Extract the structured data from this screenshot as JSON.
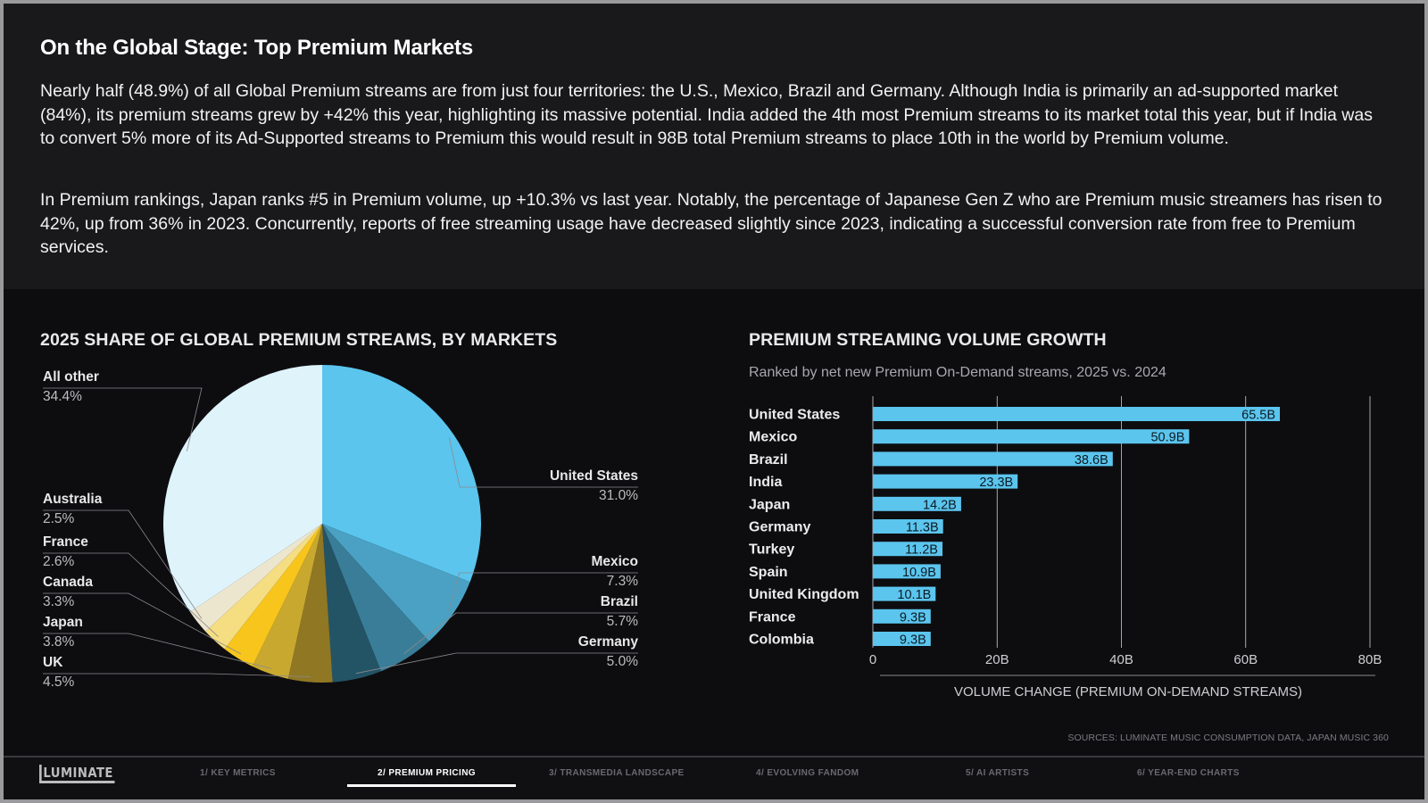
{
  "intro": {
    "title": "On the Global Stage: Top Premium Markets",
    "para1": "Nearly half (48.9%) of all Global Premium streams are from just four territories: the U.S., Mexico, Brazil and Germany. Although India is primarily an ad-supported market (84%), its premium streams grew by +42% this year, highlighting its massive potential. India added the 4th most Premium streams to its market total this year, but if India was to convert 5% more of its Ad-Supported streams to Premium this would result in 98B total Premium streams to place 10th in the world by Premium volume.",
    "para2": "In Premium rankings, Japan ranks #5 in Premium volume, up +10.3% vs last year. Notably, the percentage of Japanese Gen Z who are Premium music streamers has risen to 42%, up from 36% in 2023. Concurrently, reports of free streaming usage have decreased slightly since 2023, indicating a successful conversion rate from free to Premium services."
  },
  "chart_data": [
    {
      "type": "pie",
      "title": "2025 SHARE OF GLOBAL PREMIUM STREAMS, BY MARKETS",
      "slices": [
        {
          "label": "United States",
          "value": 31.0,
          "display": "31.0%",
          "color": "#5bc5ee"
        },
        {
          "label": "Mexico",
          "value": 7.3,
          "display": "7.3%",
          "color": "#4aa1c3"
        },
        {
          "label": "Brazil",
          "value": 5.7,
          "display": "5.7%",
          "color": "#3a7d98"
        },
        {
          "label": "Germany",
          "value": 5.0,
          "display": "5.0%",
          "color": "#235466"
        },
        {
          "label": "UK",
          "value": 4.5,
          "display": "4.5%",
          "color": "#8f7724"
        },
        {
          "label": "Japan",
          "value": 3.8,
          "display": "3.8%",
          "color": "#c9a82f"
        },
        {
          "label": "Canada",
          "value": 3.3,
          "display": "3.3%",
          "color": "#f7c51b"
        },
        {
          "label": "France",
          "value": 2.6,
          "display": "2.6%",
          "color": "#f5dd82"
        },
        {
          "label": "Australia",
          "value": 2.5,
          "display": "2.5%",
          "color": "#ede6cf"
        },
        {
          "label": "All other",
          "value": 34.4,
          "display": "34.4%",
          "color": "#dff3fb"
        }
      ]
    },
    {
      "type": "bar",
      "orientation": "horizontal",
      "title": "PREMIUM STREAMING VOLUME GROWTH",
      "subtitle": "Ranked by net new Premium On-Demand streams, 2025 vs. 2024",
      "categories": [
        "United States",
        "Mexico",
        "Brazil",
        "India",
        "Japan",
        "Germany",
        "Turkey",
        "Spain",
        "United Kingdom",
        "France",
        "Colombia"
      ],
      "values": [
        65.5,
        50.9,
        38.6,
        23.3,
        14.2,
        11.3,
        11.2,
        10.9,
        10.1,
        9.3,
        9.3
      ],
      "value_labels": [
        "65.5B",
        "50.9B",
        "38.6B",
        "23.3B",
        "14.2B",
        "11.3B",
        "11.2B",
        "10.9B",
        "10.1B",
        "9.3B",
        "9.3B"
      ],
      "xlim": [
        0,
        80
      ],
      "xticks": [
        0,
        20,
        40,
        60,
        80
      ],
      "xtick_labels": [
        "0",
        "20B",
        "40B",
        "60B",
        "80B"
      ],
      "xlabel": "VOLUME CHANGE (PREMIUM ON-DEMAND STREAMS)",
      "bar_color": "#5bc5ee",
      "grid": true
    }
  ],
  "sources": "SOURCES: LUMINATE MUSIC CONSUMPTION DATA, JAPAN MUSIC 360",
  "footer": {
    "logo": "LUMINATE",
    "tabs": [
      "1/ KEY METRICS",
      "2/ PREMIUM PRICING",
      "3/ TRANSMEDIA LANDSCAPE",
      "4/ EVOLVING FANDOM",
      "5/ AI ARTISTS",
      "6/ YEAR-END CHARTS"
    ],
    "active_tab": 1
  }
}
